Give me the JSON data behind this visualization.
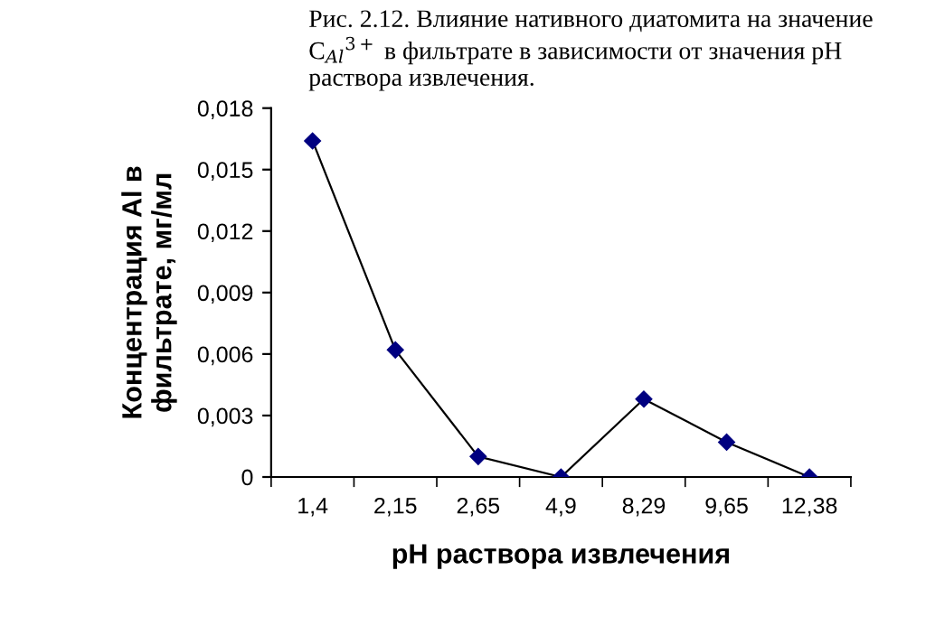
{
  "chart_data": {
    "type": "line",
    "title": "Рис. 2.12. Влияние нативного диатомита на значение C$_{Al}$$^{3+}$ в фильтрате в зависимости от значения pH раствора извлечения.",
    "xlabel": "pH раствора извлечения",
    "ylabel": "Концентрация Al в\nфильтрате, мг/мл",
    "categories": [
      "1,4",
      "2,15",
      "2,65",
      "4,9",
      "8,29",
      "9,65",
      "12,38"
    ],
    "series": [
      {
        "color": "#000080",
        "values": [
          0.0164,
          0.0062,
          0.001,
          0.0,
          0.0038,
          0.0017,
          0.0
        ]
      }
    ],
    "ylim": [
      0,
      0.018
    ],
    "yticks": [
      0,
      {
        "value": 0.003,
        "label": "0,003"
      },
      {
        "value": 0.006,
        "label": "0,006"
      },
      {
        "value": 0.009,
        "label": "0,009"
      },
      {
        "value": 0.012,
        "label": "0,012"
      },
      {
        "value": 0.015,
        "label": "0,015"
      },
      {
        "value": 0.018,
        "label": "0,018"
      }
    ],
    "marker": "diamond",
    "line_style": "solid",
    "grid": false,
    "legend": false
  }
}
